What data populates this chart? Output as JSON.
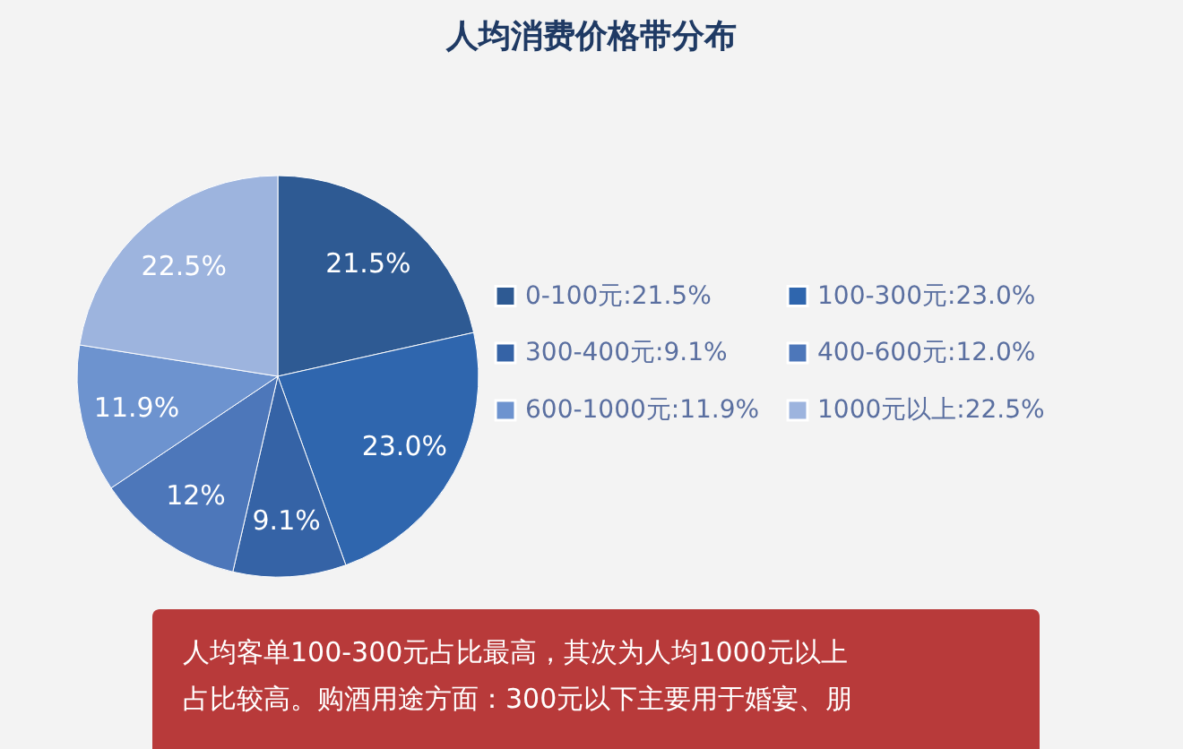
{
  "chart_data": {
    "type": "pie",
    "title": "人均消费价格带分布",
    "categories": [
      "0-100元:21.5%",
      "100-300元:23.0%",
      "300-400元:9.1%",
      "400-600元:12.0%",
      "600-1000元:11.9%",
      "1000元以上:22.5%"
    ],
    "values": [
      21.5,
      23.0,
      9.1,
      12.0,
      11.9,
      22.5
    ],
    "value_labels": [
      "21.5%",
      "23.0%",
      "9.1%",
      "12%",
      "11.9%",
      "22.5%"
    ],
    "colors": [
      "#2e5a93",
      "#2f66ae",
      "#3563a6",
      "#4d77ba",
      "#6d93cf",
      "#9db4de"
    ],
    "legend": "right",
    "annotations": [
      "人均客单100-300元占比最高，其次为人均1000元以上",
      "占比较高。购酒用途方面：300元以下主要用于婚宴、朋"
    ]
  }
}
